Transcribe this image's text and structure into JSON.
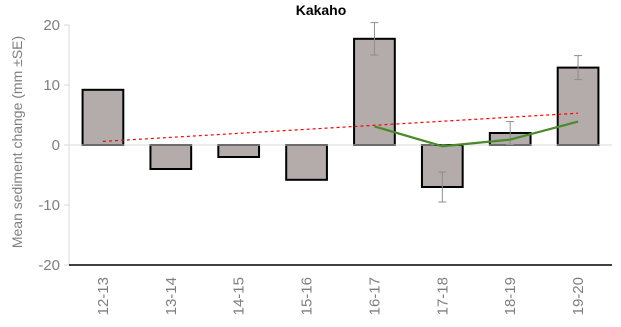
{
  "chart_data": {
    "type": "bar",
    "title": "Kakaho",
    "ylabel": "Mean sediment change (mm ±SE)",
    "xlabel": "",
    "ylim": [
      -20,
      20
    ],
    "yticks": [
      -20,
      -10,
      0,
      10,
      20
    ],
    "categories": [
      "12-13",
      "13-14",
      "14-15",
      "15-16",
      "16-17",
      "17-18",
      "18-19",
      "19-20"
    ],
    "values": [
      9.2,
      -4.0,
      -2.0,
      -5.8,
      17.7,
      -7.0,
      2.0,
      12.9
    ],
    "se": [
      null,
      null,
      null,
      null,
      2.7,
      2.5,
      1.9,
      2.0
    ],
    "trend_line": {
      "start": 0.6,
      "end": 5.3,
      "color": "#ff0000",
      "style": "dashed"
    },
    "series_line": {
      "color": "#4a8a2a",
      "categories": [
        "16-17",
        "17-18",
        "18-19",
        "19-20"
      ],
      "values": [
        3.1,
        -0.2,
        0.9,
        3.9
      ]
    },
    "bar_color": "#b3acaa",
    "grid": false,
    "legend": "none"
  }
}
